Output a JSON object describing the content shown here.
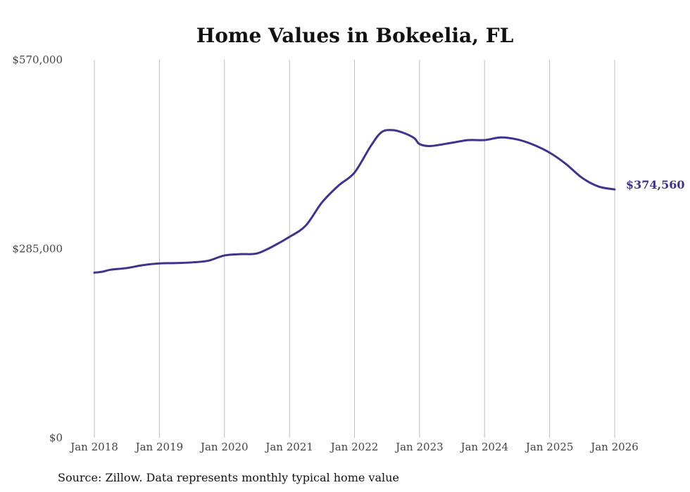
{
  "chart_data": {
    "type": "line",
    "title": "Home Values in Bokeelia, FL",
    "xlabel": "",
    "ylabel": "",
    "ylim": [
      0,
      570000
    ],
    "xlim": [
      2018.0,
      2026.0
    ],
    "y_ticks": [
      {
        "value": 0,
        "label": "$0"
      },
      {
        "value": 285000,
        "label": "$285,000"
      },
      {
        "value": 570000,
        "label": "$570,000"
      }
    ],
    "x_ticks": [
      {
        "value": 2018,
        "label": "Jan 2018"
      },
      {
        "value": 2019,
        "label": "Jan 2019"
      },
      {
        "value": 2020,
        "label": "Jan 2020"
      },
      {
        "value": 2021,
        "label": "Jan 2021"
      },
      {
        "value": 2022,
        "label": "Jan 2022"
      },
      {
        "value": 2023,
        "label": "Jan 2023"
      },
      {
        "value": 2024,
        "label": "Jan 2024"
      },
      {
        "value": 2025,
        "label": "Jan 2025"
      },
      {
        "value": 2026,
        "label": "Jan 2026"
      }
    ],
    "grid": "vertical",
    "series": [
      {
        "name": "Typical home value",
        "color": "#3d348b",
        "x": [
          2018.0,
          2018.125,
          2018.25,
          2018.5,
          2018.75,
          2019.0,
          2019.25,
          2019.5,
          2019.75,
          2020.0,
          2020.25,
          2020.5,
          2020.75,
          2021.0,
          2021.25,
          2021.5,
          2021.75,
          2022.0,
          2022.25,
          2022.4167,
          2022.5833,
          2022.75,
          2022.9167,
          2023.0,
          2023.1667,
          2023.5,
          2023.75,
          2024.0,
          2024.25,
          2024.5,
          2024.75,
          2025.0,
          2025.25,
          2025.5,
          2025.75,
          2026.0
        ],
        "y": [
          249000,
          250500,
          253500,
          256000,
          260500,
          263000,
          263500,
          264500,
          267000,
          275000,
          277000,
          278000,
          289000,
          303000,
          320000,
          355000,
          380000,
          400000,
          440000,
          461000,
          464000,
          460000,
          452000,
          443000,
          440000,
          445000,
          449000,
          449000,
          453000,
          450000,
          442000,
          430000,
          413000,
          392000,
          379000,
          374560
        ]
      }
    ],
    "end_label": "$374,560"
  },
  "footer": {
    "source": "Source: Zillow. Data represents monthly typical home value"
  }
}
